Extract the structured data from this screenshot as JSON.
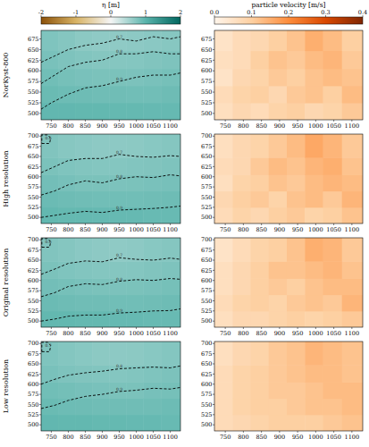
{
  "chart_data": [
    {
      "type": "heatmap",
      "ylabel": "NorKyst-800",
      "colorbar_label": "η [m]",
      "colorbar_range": [
        -2,
        2
      ],
      "colorbar_ticks": [
        -2,
        -1,
        0,
        1,
        2
      ],
      "xlim": [
        720,
        1130
      ],
      "ylim": [
        485,
        695
      ],
      "xticks": [
        750,
        800,
        850,
        900,
        950,
        1000,
        1050,
        1100
      ],
      "yticks": [
        500,
        525,
        550,
        575,
        600,
        625,
        650,
        675
      ],
      "x": [
        745,
        795,
        845,
        895,
        945,
        995,
        1045,
        1100
      ],
      "y": [
        505,
        545,
        585,
        625,
        670
      ],
      "values": [
        [
          0.95,
          0.95,
          0.94,
          0.94,
          0.93,
          0.93,
          0.92,
          0.92
        ],
        [
          0.9,
          0.88,
          0.87,
          0.86,
          0.86,
          0.85,
          0.85,
          0.87
        ],
        [
          0.85,
          0.82,
          0.8,
          0.79,
          0.79,
          0.78,
          0.8,
          0.82
        ],
        [
          0.8,
          0.77,
          0.74,
          0.72,
          0.72,
          0.73,
          0.75,
          0.77
        ],
        [
          0.76,
          0.72,
          0.68,
          0.66,
          0.66,
          0.67,
          0.69,
          0.71
        ]
      ],
      "contours": [
        {
          "level": 0.9,
          "x": [
            720,
            750,
            800,
            850,
            900,
            950,
            1000,
            1050,
            1100,
            1130
          ],
          "y": [
            510,
            525,
            545,
            560,
            565,
            575,
            585,
            590,
            590,
            595
          ]
        },
        {
          "level": 0.8,
          "x": [
            720,
            760,
            800,
            850,
            900,
            950,
            1000,
            1050,
            1100,
            1130
          ],
          "y": [
            570,
            590,
            610,
            620,
            625,
            640,
            640,
            645,
            640,
            640
          ]
        },
        {
          "level": 0.7,
          "x": [
            720,
            760,
            800,
            850,
            900,
            950,
            1000,
            1050,
            1100,
            1130
          ],
          "y": [
            620,
            635,
            650,
            660,
            665,
            675,
            670,
            680,
            675,
            680
          ]
        }
      ]
    },
    {
      "type": "heatmap",
      "colorbar_label": "particle velocity [m/s]",
      "colorbar_range": [
        0,
        0.4
      ],
      "colorbar_ticks": [
        {
          "value": 0,
          "label": "0.0"
        },
        0.1,
        0.2,
        0.3,
        0.4
      ],
      "xlim": [
        720,
        1130
      ],
      "ylim": [
        485,
        695
      ],
      "xticks": [
        750,
        800,
        850,
        900,
        950,
        1000,
        1050,
        1100
      ],
      "yticks": [
        500,
        525,
        550,
        575,
        600,
        625,
        650,
        675
      ],
      "x": [
        745,
        795,
        845,
        895,
        945,
        995,
        1045,
        1100
      ],
      "y": [
        505,
        545,
        585,
        625,
        670
      ],
      "values": [
        [
          0.06,
          0.08,
          0.07,
          0.09,
          0.1,
          0.08,
          0.09,
          0.11
        ],
        [
          0.07,
          0.09,
          0.1,
          0.08,
          0.11,
          0.12,
          0.1,
          0.13
        ],
        [
          0.05,
          0.08,
          0.09,
          0.11,
          0.1,
          0.12,
          0.13,
          0.12
        ],
        [
          0.06,
          0.07,
          0.1,
          0.12,
          0.11,
          0.13,
          0.14,
          0.11
        ],
        [
          0.05,
          0.07,
          0.08,
          0.1,
          0.12,
          0.15,
          0.13,
          0.1
        ]
      ]
    },
    {
      "type": "heatmap",
      "ylabel": "High resolution",
      "colorbar_range": [
        -2,
        2
      ],
      "xlim": [
        720,
        1130
      ],
      "ylim": [
        485,
        705
      ],
      "xticks": [
        750,
        800,
        850,
        900,
        950,
        1000,
        1050,
        1100
      ],
      "yticks": [
        500,
        525,
        550,
        575,
        600,
        625,
        650,
        675,
        700
      ],
      "x": [
        745,
        795,
        845,
        895,
        945,
        995,
        1045,
        1100
      ],
      "y": [
        505,
        545,
        585,
        625,
        670
      ],
      "values": [
        [
          0.94,
          0.93,
          0.93,
          0.92,
          0.92,
          0.92,
          0.91,
          0.91
        ],
        [
          0.89,
          0.87,
          0.86,
          0.85,
          0.85,
          0.85,
          0.86,
          0.87
        ],
        [
          0.84,
          0.81,
          0.79,
          0.79,
          0.78,
          0.79,
          0.8,
          0.81
        ],
        [
          0.79,
          0.76,
          0.74,
          0.73,
          0.73,
          0.74,
          0.75,
          0.77
        ],
        [
          0.75,
          0.71,
          0.69,
          0.67,
          0.67,
          0.68,
          0.7,
          0.72
        ]
      ],
      "contours": [
        {
          "level": 0.9,
          "x": [
            720,
            760,
            800,
            850,
            900,
            950,
            1000,
            1050,
            1100,
            1130
          ],
          "y": [
            500,
            505,
            510,
            515,
            512,
            518,
            520,
            522,
            525,
            528
          ]
        },
        {
          "level": 0.8,
          "x": [
            720,
            760,
            800,
            850,
            900,
            950,
            1000,
            1050,
            1100,
            1130
          ],
          "y": [
            555,
            565,
            580,
            590,
            585,
            595,
            600,
            598,
            605,
            602
          ]
        },
        {
          "level": 0.7,
          "x": [
            720,
            760,
            800,
            850,
            900,
            950,
            1000,
            1050,
            1100,
            1130
          ],
          "y": [
            610,
            625,
            640,
            645,
            645,
            655,
            650,
            648,
            652,
            650
          ]
        },
        {
          "level": 0.6,
          "x": [
            722,
            745,
            748,
            740,
            722,
            722
          ],
          "y": [
            682,
            682,
            695,
            703,
            703,
            682
          ]
        }
      ]
    },
    {
      "type": "heatmap",
      "colorbar_range": [
        0,
        0.4
      ],
      "xlim": [
        720,
        1130
      ],
      "ylim": [
        485,
        705
      ],
      "xticks": [
        750,
        800,
        850,
        900,
        950,
        1000,
        1050,
        1100
      ],
      "yticks": [
        500,
        525,
        550,
        575,
        600,
        625,
        650,
        675,
        700
      ],
      "x": [
        745,
        795,
        845,
        895,
        945,
        995,
        1045,
        1100
      ],
      "y": [
        505,
        545,
        585,
        625,
        670
      ],
      "values": [
        [
          0.07,
          0.09,
          0.08,
          0.1,
          0.11,
          0.09,
          0.1,
          0.12
        ],
        [
          0.08,
          0.1,
          0.11,
          0.09,
          0.12,
          0.13,
          0.11,
          0.14
        ],
        [
          0.06,
          0.09,
          0.1,
          0.12,
          0.11,
          0.13,
          0.14,
          0.13
        ],
        [
          0.07,
          0.08,
          0.11,
          0.13,
          0.12,
          0.14,
          0.15,
          0.12
        ],
        [
          0.06,
          0.08,
          0.09,
          0.11,
          0.13,
          0.16,
          0.14,
          0.11
        ]
      ]
    },
    {
      "type": "heatmap",
      "ylabel": "Original resolution",
      "colorbar_range": [
        -2,
        2
      ],
      "xlim": [
        720,
        1130
      ],
      "ylim": [
        485,
        705
      ],
      "xticks": [
        750,
        800,
        850,
        900,
        950,
        1000,
        1050,
        1100
      ],
      "yticks": [
        500,
        525,
        550,
        575,
        600,
        625,
        650,
        675,
        700
      ],
      "x": [
        745,
        795,
        845,
        895,
        945,
        995,
        1045,
        1100
      ],
      "y": [
        505,
        545,
        585,
        625,
        670
      ],
      "values": [
        [
          0.94,
          0.94,
          0.93,
          0.93,
          0.92,
          0.92,
          0.91,
          0.91
        ],
        [
          0.89,
          0.87,
          0.86,
          0.86,
          0.85,
          0.85,
          0.86,
          0.87
        ],
        [
          0.84,
          0.82,
          0.8,
          0.79,
          0.78,
          0.79,
          0.8,
          0.82
        ],
        [
          0.79,
          0.76,
          0.74,
          0.73,
          0.72,
          0.73,
          0.75,
          0.77
        ],
        [
          0.75,
          0.72,
          0.69,
          0.67,
          0.66,
          0.67,
          0.7,
          0.72
        ]
      ],
      "contours": [
        {
          "level": 0.9,
          "x": [
            720,
            760,
            800,
            850,
            900,
            950,
            1000,
            1050,
            1100,
            1130
          ],
          "y": [
            500,
            505,
            512,
            515,
            515,
            520,
            522,
            525,
            526,
            530
          ]
        },
        {
          "level": 0.8,
          "x": [
            720,
            760,
            800,
            850,
            900,
            950,
            1000,
            1050,
            1100,
            1130
          ],
          "y": [
            560,
            570,
            585,
            592,
            590,
            598,
            602,
            600,
            605,
            603
          ]
        },
        {
          "level": 0.7,
          "x": [
            720,
            760,
            800,
            850,
            900,
            950,
            1000,
            1050,
            1100,
            1130
          ],
          "y": [
            615,
            628,
            642,
            648,
            646,
            656,
            652,
            650,
            655,
            652
          ]
        },
        {
          "level": 0.6,
          "x": [
            722,
            745,
            748,
            740,
            722,
            722
          ],
          "y": [
            682,
            682,
            695,
            703,
            703,
            682
          ]
        }
      ]
    },
    {
      "type": "heatmap",
      "colorbar_range": [
        0,
        0.4
      ],
      "xlim": [
        720,
        1130
      ],
      "ylim": [
        485,
        705
      ],
      "xticks": [
        750,
        800,
        850,
        900,
        950,
        1000,
        1050,
        1100
      ],
      "yticks": [
        500,
        525,
        550,
        575,
        600,
        625,
        650,
        675,
        700
      ],
      "x": [
        745,
        795,
        845,
        895,
        945,
        995,
        1045,
        1100
      ],
      "y": [
        505,
        545,
        585,
        625,
        670
      ],
      "values": [
        [
          0.06,
          0.08,
          0.08,
          0.09,
          0.1,
          0.09,
          0.1,
          0.11
        ],
        [
          0.07,
          0.09,
          0.1,
          0.09,
          0.11,
          0.12,
          0.11,
          0.14
        ],
        [
          0.06,
          0.08,
          0.1,
          0.11,
          0.1,
          0.12,
          0.13,
          0.13
        ],
        [
          0.06,
          0.08,
          0.1,
          0.12,
          0.12,
          0.13,
          0.14,
          0.12
        ],
        [
          0.05,
          0.07,
          0.09,
          0.1,
          0.12,
          0.15,
          0.14,
          0.11
        ]
      ]
    },
    {
      "type": "heatmap",
      "ylabel": "Low resolution",
      "colorbar_range": [
        -2,
        2
      ],
      "xlim": [
        720,
        1130
      ],
      "ylim": [
        485,
        705
      ],
      "xticks": [
        750,
        800,
        850,
        900,
        950,
        1000,
        1050,
        1100
      ],
      "yticks": [
        500,
        525,
        550,
        575,
        600,
        625,
        650,
        675,
        700
      ],
      "x": [
        745,
        795,
        845,
        895,
        945,
        995,
        1045,
        1100
      ],
      "y": [
        505,
        545,
        585,
        625,
        670
      ],
      "values": [
        [
          0.95,
          0.94,
          0.94,
          0.93,
          0.93,
          0.92,
          0.92,
          0.91
        ],
        [
          0.9,
          0.88,
          0.87,
          0.86,
          0.86,
          0.86,
          0.86,
          0.88
        ],
        [
          0.85,
          0.83,
          0.81,
          0.8,
          0.79,
          0.79,
          0.81,
          0.82
        ],
        [
          0.8,
          0.77,
          0.75,
          0.74,
          0.73,
          0.74,
          0.76,
          0.78
        ],
        [
          0.76,
          0.73,
          0.7,
          0.68,
          0.67,
          0.68,
          0.7,
          0.73
        ]
      ],
      "contours": [
        {
          "level": 0.9,
          "x": [
            720,
            760,
            800,
            850,
            900,
            950,
            1000,
            1050,
            1100,
            1130
          ],
          "y": [
            540,
            548,
            560,
            570,
            575,
            582,
            585,
            590,
            588,
            592
          ]
        },
        {
          "level": 0.8,
          "x": [
            720,
            760,
            800,
            850,
            900,
            950,
            1000,
            1050,
            1100,
            1130
          ],
          "y": [
            600,
            612,
            622,
            628,
            632,
            638,
            640,
            642,
            640,
            645
          ]
        },
        {
          "level": 0.7,
          "x": [
            722,
            745,
            748,
            740,
            722,
            722
          ],
          "y": [
            680,
            680,
            695,
            703,
            703,
            680
          ]
        }
      ]
    },
    {
      "type": "heatmap",
      "colorbar_range": [
        0,
        0.4
      ],
      "xlim": [
        720,
        1130
      ],
      "ylim": [
        485,
        705
      ],
      "xticks": [
        750,
        800,
        850,
        900,
        950,
        1000,
        1050,
        1100
      ],
      "yticks": [
        500,
        525,
        550,
        575,
        600,
        625,
        650,
        675,
        700
      ],
      "x": [
        745,
        795,
        845,
        895,
        945,
        995,
        1045,
        1100
      ],
      "y": [
        505,
        545,
        585,
        625,
        670
      ],
      "values": [
        [
          0.07,
          0.08,
          0.09,
          0.1,
          0.1,
          0.1,
          0.11,
          0.12
        ],
        [
          0.07,
          0.09,
          0.1,
          0.1,
          0.11,
          0.12,
          0.12,
          0.13
        ],
        [
          0.07,
          0.09,
          0.1,
          0.11,
          0.11,
          0.12,
          0.13,
          0.13
        ],
        [
          0.07,
          0.09,
          0.1,
          0.11,
          0.12,
          0.13,
          0.13,
          0.12
        ],
        [
          0.06,
          0.08,
          0.09,
          0.11,
          0.12,
          0.14,
          0.13,
          0.12
        ]
      ]
    }
  ]
}
